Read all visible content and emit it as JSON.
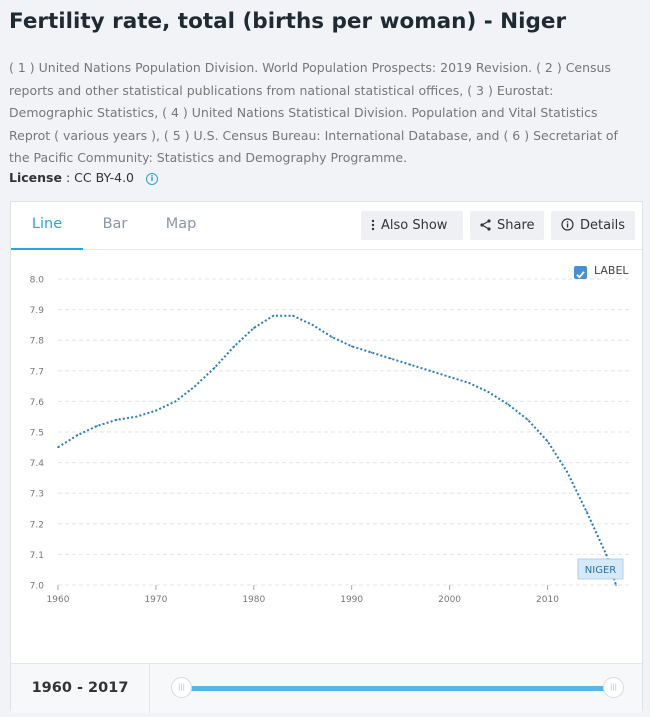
{
  "page": {
    "title": "Fertility rate, total (births per woman) - Niger",
    "sources": "( 1 ) United Nations Population Division. World Population Prospects: 2019 Revision. ( 2 ) Census reports and other statistical publications from national statistical offices, ( 3 ) Eurostat: Demographic Statistics, ( 4 ) United Nations Statistical Division. Population and Vital Statistics Reprot ( various years ), ( 5 ) U.S. Census Bureau: International Database, and ( 6 ) Secretariat of the Pacific Community: Statistics and Demography Programme.",
    "license_label": "License",
    "license_value": ": CC BY-4.0"
  },
  "tabs": [
    {
      "label": "Line",
      "active": true
    },
    {
      "label": "Bar",
      "active": false
    },
    {
      "label": "Map",
      "active": false
    }
  ],
  "toolbar": {
    "also_show": "Also Show",
    "share": "Share",
    "details": "Details"
  },
  "legend": {
    "checkbox_label": "LABEL",
    "checked": true
  },
  "footer": {
    "range": "1960 - 2017",
    "slider_start_year": 1960,
    "slider_end_year": 2017
  },
  "colors": {
    "accent": "#2aa3de",
    "line": "#2a7db3"
  },
  "chart_data": {
    "type": "line",
    "title": "",
    "xlabel": "",
    "ylabel": "",
    "x_ticks": [
      "1960",
      "1970",
      "1980",
      "1990",
      "2000",
      "2010"
    ],
    "y_ticks": [
      "7.0",
      "7.1",
      "7.2",
      "7.3",
      "7.4",
      "7.5",
      "7.6",
      "7.7",
      "7.8",
      "7.9",
      "8.0"
    ],
    "xlim": [
      1960,
      2017
    ],
    "ylim": [
      7.0,
      8.0
    ],
    "grid": true,
    "series": [
      {
        "name": "NIGER",
        "x": [
          1960,
          1962,
          1964,
          1966,
          1968,
          1970,
          1972,
          1974,
          1976,
          1978,
          1980,
          1982,
          1984,
          1986,
          1988,
          1990,
          1992,
          1994,
          1996,
          1998,
          2000,
          2002,
          2004,
          2006,
          2008,
          2010,
          2012,
          2014,
          2016,
          2017
        ],
        "y": [
          7.45,
          7.49,
          7.52,
          7.54,
          7.55,
          7.57,
          7.6,
          7.65,
          7.71,
          7.78,
          7.84,
          7.88,
          7.88,
          7.85,
          7.81,
          7.78,
          7.76,
          7.74,
          7.72,
          7.7,
          7.68,
          7.66,
          7.63,
          7.59,
          7.54,
          7.47,
          7.37,
          7.24,
          7.1,
          7.0
        ]
      }
    ]
  }
}
